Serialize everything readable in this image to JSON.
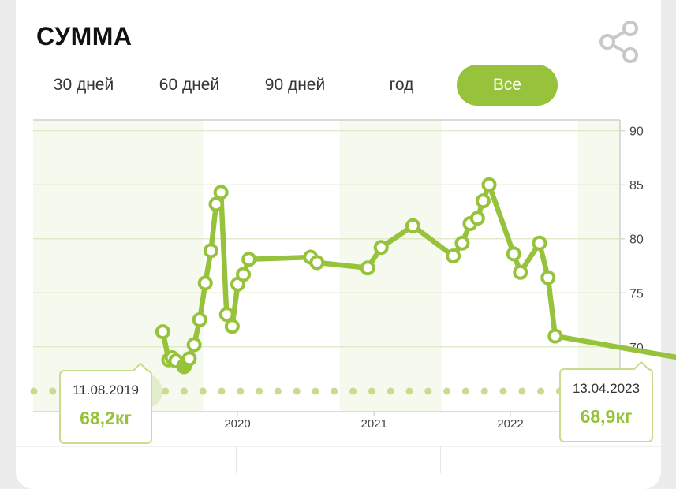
{
  "header": {
    "title": "СУММА"
  },
  "icons": {
    "share": "share-icon"
  },
  "tabs": [
    {
      "label": "30 дней",
      "active": false
    },
    {
      "label": "60 дней",
      "active": false
    },
    {
      "label": "90 дней",
      "active": false
    },
    {
      "label": "год",
      "active": false
    },
    {
      "label": "Все",
      "active": true
    }
  ],
  "colors": {
    "accent": "#96c23c",
    "light_accent": "#c6dc8e",
    "band": "#f6f9ee"
  },
  "chart_data": {
    "type": "line",
    "ylim": [
      64,
      91
    ],
    "yticks": [
      70,
      75,
      80,
      85,
      90
    ],
    "xticks": [
      "2020",
      "2021",
      "2022"
    ],
    "series": [
      {
        "points": [
          [
            "2019-06-15",
            71.4
          ],
          [
            "2019-07-01",
            68.8
          ],
          [
            "2019-07-10",
            69.0
          ],
          [
            "2019-07-20",
            68.7
          ],
          [
            "2019-08-11",
            68.2
          ],
          [
            "2019-08-25",
            68.9
          ],
          [
            "2019-09-07",
            70.2
          ],
          [
            "2019-09-22",
            72.5
          ],
          [
            "2019-10-07",
            75.9
          ],
          [
            "2019-10-22",
            78.9
          ],
          [
            "2019-11-05",
            83.2
          ],
          [
            "2019-11-18",
            84.3
          ],
          [
            "2019-12-03",
            73.0
          ],
          [
            "2019-12-18",
            71.9
          ],
          [
            "2020-01-02",
            75.8
          ],
          [
            "2020-01-17",
            76.7
          ],
          [
            "2020-02-01",
            78.1
          ],
          [
            "2020-07-15",
            78.3
          ],
          [
            "2020-08-01",
            77.8
          ],
          [
            "2020-12-15",
            77.3
          ],
          [
            "2021-01-20",
            79.2
          ],
          [
            "2021-04-15",
            81.2
          ],
          [
            "2021-08-01",
            78.4
          ],
          [
            "2021-08-25",
            79.6
          ],
          [
            "2021-09-15",
            81.4
          ],
          [
            "2021-10-05",
            81.9
          ],
          [
            "2021-10-20",
            83.5
          ],
          [
            "2021-11-05",
            85.0
          ],
          [
            "2022-01-10",
            78.6
          ],
          [
            "2022-01-28",
            76.9
          ],
          [
            "2022-03-20",
            79.6
          ],
          [
            "2022-04-12",
            76.4
          ],
          [
            "2022-05-01",
            71.0
          ],
          [
            "2023-04-13",
            68.9
          ]
        ]
      }
    ],
    "tooltips": [
      {
        "date": "11.08.2019",
        "value": "68,2кг"
      },
      {
        "date": "13.04.2023",
        "value": "68,9кг"
      }
    ]
  }
}
